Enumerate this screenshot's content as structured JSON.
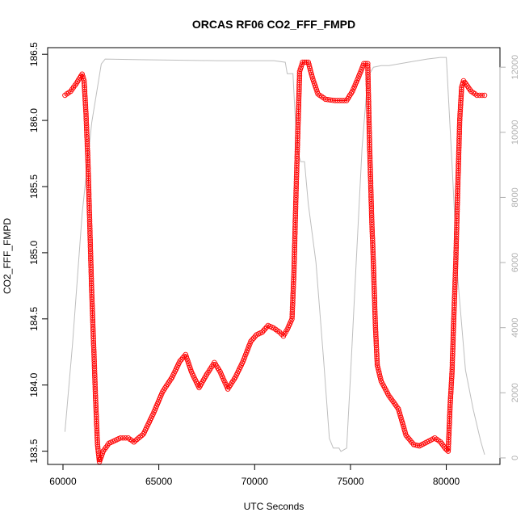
{
  "chart_data": {
    "type": "line",
    "title": "ORCAS RF06 CO2_FFF_FMPD",
    "xlabel": "UTC Seconds",
    "ylabel": "CO2_FFF_FMPD",
    "xlim": [
      59200,
      82800
    ],
    "ylim": [
      183.4,
      186.55
    ],
    "y2lim": [
      -200,
      12600
    ],
    "x_ticks": [
      60000,
      65000,
      70000,
      75000,
      80000
    ],
    "y_ticks": [
      183.5,
      184.0,
      184.5,
      185.0,
      185.5,
      186.0,
      186.5
    ],
    "y_tick_labels": [
      "183.5",
      "184.0",
      "184.5",
      "185.0",
      "185.5",
      "186.0",
      "186.5"
    ],
    "y2_ticks": [
      0,
      2000,
      4000,
      6000,
      8000,
      10000,
      12000
    ],
    "y2_tick_labels": [
      "0",
      "2000",
      "4000",
      "6000",
      "8000",
      "10000",
      "12000"
    ],
    "grid": false,
    "series": [
      {
        "role": "co2",
        "color": "#ff0000",
        "marker": "open-circle",
        "axis": "left",
        "points": [
          [
            60100,
            186.19
          ],
          [
            60400,
            186.22
          ],
          [
            60700,
            186.28
          ],
          [
            61000,
            186.35
          ],
          [
            61100,
            186.3
          ],
          [
            61200,
            186.05
          ],
          [
            61300,
            185.7
          ],
          [
            61400,
            185.2
          ],
          [
            61500,
            184.7
          ],
          [
            61600,
            184.3
          ],
          [
            61700,
            183.9
          ],
          [
            61800,
            183.55
          ],
          [
            61900,
            183.42
          ],
          [
            62100,
            183.5
          ],
          [
            62400,
            183.56
          ],
          [
            63000,
            183.6
          ],
          [
            63400,
            183.6
          ],
          [
            63700,
            183.57
          ],
          [
            64200,
            183.63
          ],
          [
            64700,
            183.78
          ],
          [
            65200,
            183.95
          ],
          [
            65700,
            184.06
          ],
          [
            66100,
            184.18
          ],
          [
            66400,
            184.23
          ],
          [
            66700,
            184.1
          ],
          [
            67100,
            183.98
          ],
          [
            67500,
            184.08
          ],
          [
            67900,
            184.17
          ],
          [
            68200,
            184.1
          ],
          [
            68600,
            183.97
          ],
          [
            69000,
            184.06
          ],
          [
            69400,
            184.18
          ],
          [
            69800,
            184.33
          ],
          [
            70100,
            184.38
          ],
          [
            70400,
            184.4
          ],
          [
            70700,
            184.45
          ],
          [
            71000,
            184.43
          ],
          [
            71300,
            184.4
          ],
          [
            71500,
            184.37
          ],
          [
            71700,
            184.42
          ],
          [
            71950,
            184.5
          ],
          [
            72050,
            184.85
          ],
          [
            72150,
            185.4
          ],
          [
            72250,
            185.9
          ],
          [
            72350,
            186.37
          ],
          [
            72500,
            186.44
          ],
          [
            72800,
            186.44
          ],
          [
            73000,
            186.33
          ],
          [
            73300,
            186.2
          ],
          [
            73700,
            186.16
          ],
          [
            74200,
            186.15
          ],
          [
            74800,
            186.15
          ],
          [
            75100,
            186.22
          ],
          [
            75400,
            186.32
          ],
          [
            75700,
            186.43
          ],
          [
            75900,
            186.43
          ],
          [
            76000,
            185.8
          ],
          [
            76100,
            185.3
          ],
          [
            76200,
            184.9
          ],
          [
            76300,
            184.45
          ],
          [
            76400,
            184.15
          ],
          [
            76600,
            184.03
          ],
          [
            77000,
            183.92
          ],
          [
            77500,
            183.82
          ],
          [
            77900,
            183.62
          ],
          [
            78300,
            183.55
          ],
          [
            78600,
            183.54
          ],
          [
            79000,
            183.57
          ],
          [
            79400,
            183.6
          ],
          [
            79700,
            183.57
          ],
          [
            79950,
            183.52
          ],
          [
            80100,
            183.5
          ],
          [
            80200,
            183.85
          ],
          [
            80300,
            184.1
          ],
          [
            80400,
            184.55
          ],
          [
            80500,
            184.95
          ],
          [
            80600,
            185.5
          ],
          [
            80700,
            186.0
          ],
          [
            80800,
            186.25
          ],
          [
            80900,
            186.3
          ],
          [
            81300,
            186.22
          ],
          [
            81600,
            186.19
          ],
          [
            82000,
            186.19
          ]
        ]
      },
      {
        "role": "altitude",
        "color": "#bebebe",
        "axis": "right",
        "points": [
          [
            60100,
            800
          ],
          [
            60500,
            3500
          ],
          [
            61000,
            7500
          ],
          [
            61500,
            10300
          ],
          [
            62000,
            12100
          ],
          [
            62200,
            12250
          ],
          [
            64000,
            12230
          ],
          [
            68000,
            12200
          ],
          [
            71000,
            12200
          ],
          [
            71600,
            12150
          ],
          [
            71700,
            11800
          ],
          [
            72000,
            11800
          ],
          [
            72200,
            9500
          ],
          [
            72400,
            9100
          ],
          [
            72600,
            9100
          ],
          [
            72800,
            7800
          ],
          [
            73200,
            6000
          ],
          [
            73600,
            3000
          ],
          [
            73900,
            600
          ],
          [
            74100,
            300
          ],
          [
            74400,
            300
          ],
          [
            74500,
            200
          ],
          [
            74800,
            300
          ],
          [
            75000,
            2500
          ],
          [
            75300,
            6000
          ],
          [
            75600,
            9500
          ],
          [
            75900,
            11700
          ],
          [
            76200,
            12000
          ],
          [
            76600,
            12050
          ],
          [
            77000,
            12050
          ],
          [
            78000,
            12150
          ],
          [
            79000,
            12250
          ],
          [
            79700,
            12300
          ],
          [
            80000,
            12300
          ],
          [
            80300,
            9000
          ],
          [
            80600,
            5500
          ],
          [
            81000,
            2700
          ],
          [
            81400,
            1500
          ],
          [
            81800,
            500
          ],
          [
            82000,
            100
          ]
        ]
      }
    ]
  }
}
